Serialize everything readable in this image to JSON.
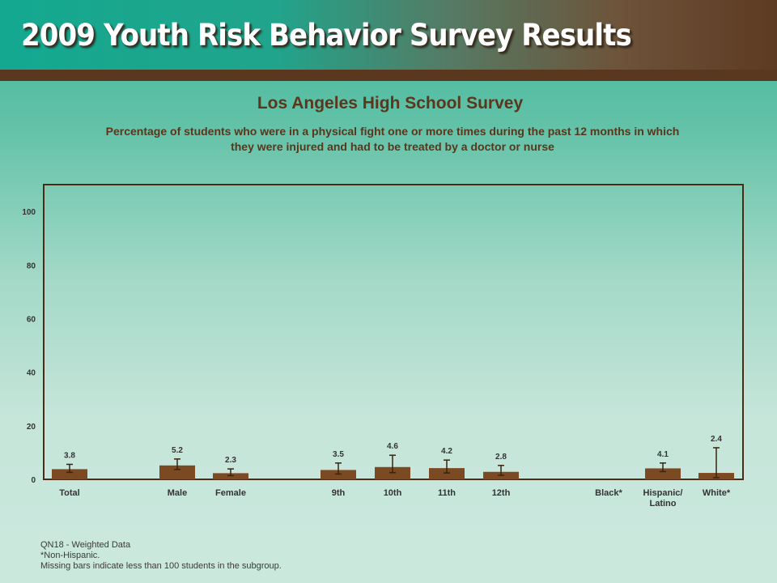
{
  "header": {
    "title": "2009 Youth Risk Behavior Survey Results"
  },
  "chart_data": {
    "type": "bar",
    "title": "Los Angeles High School Survey",
    "subtitle_line1": "Percentage of students who were in a physical fight one or more times during the past 12 months in which",
    "subtitle_line2": "they were injured and had to be treated by a doctor or nurse",
    "ylim": [
      0,
      110
    ],
    "yticks": [
      "0",
      "20",
      "40",
      "60",
      "80",
      "100"
    ],
    "grid": false,
    "categories": [
      "Total",
      "Male",
      "Female",
      "9th",
      "10th",
      "11th",
      "12th",
      "Black*",
      "Hispanic/ Latino",
      "White*"
    ],
    "values": [
      3.8,
      5.2,
      2.3,
      3.5,
      4.6,
      4.2,
      2.8,
      null,
      4.1,
      2.4
    ],
    "value_labels": [
      "3.8",
      "5.2",
      "2.3",
      "3.5",
      "4.6",
      "4.2",
      "2.8",
      "",
      "4.1",
      "2.4"
    ],
    "error_low": [
      2.6,
      3.7,
      1.4,
      2.0,
      2.5,
      2.4,
      1.5,
      null,
      2.9,
      0.6
    ],
    "error_high": [
      5.6,
      7.6,
      3.9,
      6.1,
      9.0,
      7.2,
      5.2,
      null,
      6.1,
      11.8
    ],
    "bar_color": "#7b4a23"
  },
  "notes": {
    "line1": "QN18 - Weighted Data",
    "line2": "*Non-Hispanic.",
    "line3": "Missing bars indicate less than 100 students in the subgroup."
  }
}
